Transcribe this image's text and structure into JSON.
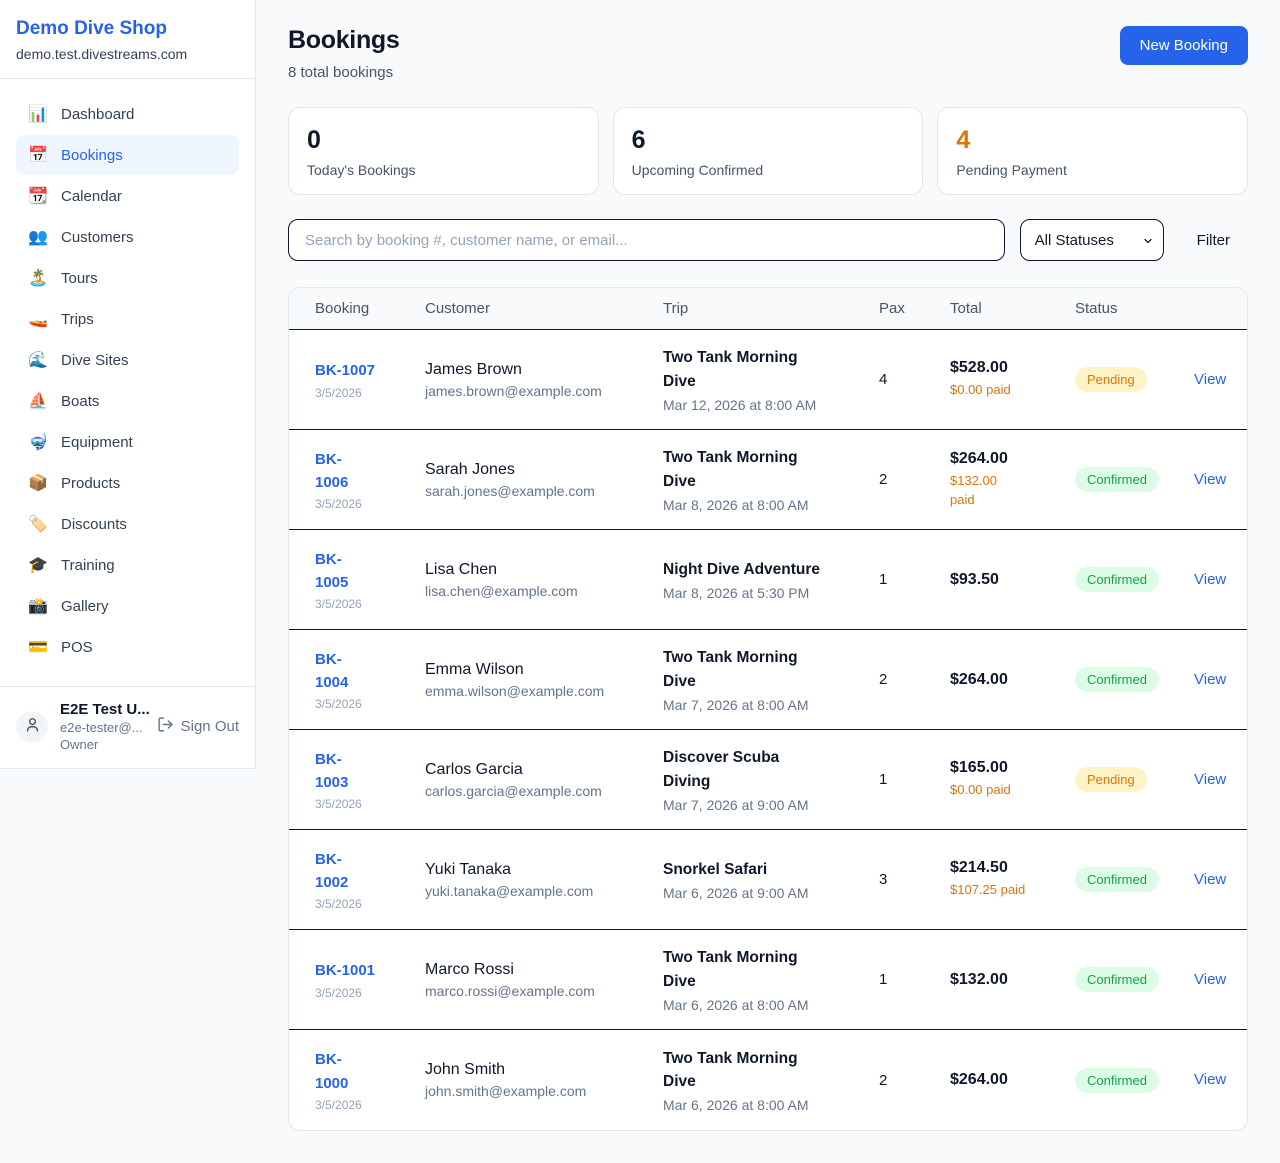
{
  "colors": {
    "accent_blue": "#2563eb",
    "stat_orange": "#d97706",
    "pending_bg": "#fef3c7",
    "pending_text": "#d97706",
    "confirmed_bg": "#dcfce7",
    "confirmed_text": "#16a34a"
  },
  "sidebar": {
    "title": "Demo Dive Shop",
    "domain": "demo.test.divestreams.com",
    "items": [
      {
        "label": "Dashboard",
        "icon": "bar-chart-icon",
        "glyph": "📊",
        "active": false
      },
      {
        "label": "Bookings",
        "icon": "calendar-icon",
        "glyph": "📅",
        "active": true
      },
      {
        "label": "Calendar",
        "icon": "tearoff-calendar-icon",
        "glyph": "📆",
        "active": false
      },
      {
        "label": "Customers",
        "icon": "people-icon",
        "glyph": "👥",
        "active": false
      },
      {
        "label": "Tours",
        "icon": "island-icon",
        "glyph": "🏝️",
        "active": false
      },
      {
        "label": "Trips",
        "icon": "speedboat-icon",
        "glyph": "🚤",
        "active": false
      },
      {
        "label": "Dive Sites",
        "icon": "wave-icon",
        "glyph": "🌊",
        "active": false
      },
      {
        "label": "Boats",
        "icon": "sailboat-icon",
        "glyph": "⛵",
        "active": false
      },
      {
        "label": "Equipment",
        "icon": "diving-mask-icon",
        "glyph": "🤿",
        "active": false
      },
      {
        "label": "Products",
        "icon": "package-icon",
        "glyph": "📦",
        "active": false
      },
      {
        "label": "Discounts",
        "icon": "label-tag-icon",
        "glyph": "🏷️",
        "active": false
      },
      {
        "label": "Training",
        "icon": "graduation-cap-icon",
        "glyph": "🎓",
        "active": false
      },
      {
        "label": "Gallery",
        "icon": "camera-flash-icon",
        "glyph": "📸",
        "active": false
      },
      {
        "label": "POS",
        "icon": "credit-card-icon",
        "glyph": "💳",
        "active": false
      }
    ],
    "user": {
      "name": "E2E Test U...",
      "email": "e2e-tester@...",
      "role": "Owner",
      "sign_out_label": "Sign Out"
    }
  },
  "header": {
    "title": "Bookings",
    "subtitle": "8 total bookings",
    "new_booking_label": "New Booking"
  },
  "stats": [
    {
      "value": "0",
      "label": "Today's Bookings",
      "value_color": "#0f172a"
    },
    {
      "value": "6",
      "label": "Upcoming Confirmed",
      "value_color": "#0f172a"
    },
    {
      "value": "4",
      "label": "Pending Payment",
      "value_color": "#d97706"
    }
  ],
  "controls": {
    "search_placeholder": "Search by booking #, customer name, or email...",
    "status_filter_value": "All Statuses",
    "filter_label": "Filter"
  },
  "table": {
    "columns": [
      "Booking",
      "Customer",
      "Trip",
      "Pax",
      "Total",
      "Status"
    ],
    "view_label": "View",
    "rows": [
      {
        "id": "BK-1007",
        "id_two_line": false,
        "date": "3/5/2026",
        "customer_name": "James Brown",
        "customer_email": "james.brown@example.com",
        "trip_name": "Two Tank Morning Dive",
        "trip_datetime": "Mar 12, 2026 at 8:00 AM",
        "pax": "4",
        "total": "$528.00",
        "paid": "$0.00 paid",
        "paid_two_line": false,
        "status": "Pending"
      },
      {
        "id": "BK-1006",
        "id_two_line": true,
        "date": "3/5/2026",
        "customer_name": "Sarah Jones",
        "customer_email": "sarah.jones@example.com",
        "trip_name": "Two Tank Morning Dive",
        "trip_datetime": "Mar 8, 2026 at 8:00 AM",
        "pax": "2",
        "total": "$264.00",
        "paid": "$132.00 paid",
        "paid_two_line": true,
        "status": "Confirmed"
      },
      {
        "id": "BK-1005",
        "id_two_line": true,
        "date": "3/5/2026",
        "customer_name": "Lisa Chen",
        "customer_email": "lisa.chen@example.com",
        "trip_name": "Night Dive Adventure",
        "trip_datetime": "Mar 8, 2026 at 5:30 PM",
        "pax": "1",
        "total": "$93.50",
        "paid": null,
        "paid_two_line": false,
        "status": "Confirmed"
      },
      {
        "id": "BK-1004",
        "id_two_line": true,
        "date": "3/5/2026",
        "customer_name": "Emma Wilson",
        "customer_email": "emma.wilson@example.com",
        "trip_name": "Two Tank Morning Dive",
        "trip_datetime": "Mar 7, 2026 at 8:00 AM",
        "pax": "2",
        "total": "$264.00",
        "paid": null,
        "paid_two_line": false,
        "status": "Confirmed"
      },
      {
        "id": "BK-1003",
        "id_two_line": true,
        "date": "3/5/2026",
        "customer_name": "Carlos Garcia",
        "customer_email": "carlos.garcia@example.com",
        "trip_name": "Discover Scuba Diving",
        "trip_datetime": "Mar 7, 2026 at 9:00 AM",
        "pax": "1",
        "total": "$165.00",
        "paid": "$0.00 paid",
        "paid_two_line": false,
        "status": "Pending"
      },
      {
        "id": "BK-1002",
        "id_two_line": true,
        "date": "3/5/2026",
        "customer_name": "Yuki Tanaka",
        "customer_email": "yuki.tanaka@example.com",
        "trip_name": "Snorkel Safari",
        "trip_datetime": "Mar 6, 2026 at 9:00 AM",
        "pax": "3",
        "total": "$214.50",
        "paid": "$107.25 paid",
        "paid_two_line": false,
        "status": "Confirmed"
      },
      {
        "id": "BK-1001",
        "id_two_line": false,
        "date": "3/5/2026",
        "customer_name": "Marco Rossi",
        "customer_email": "marco.rossi@example.com",
        "trip_name": "Two Tank Morning Dive",
        "trip_datetime": "Mar 6, 2026 at 8:00 AM",
        "pax": "1",
        "total": "$132.00",
        "paid": null,
        "paid_two_line": false,
        "status": "Confirmed"
      },
      {
        "id": "BK-1000",
        "id_two_line": true,
        "date": "3/5/2026",
        "customer_name": "John Smith",
        "customer_email": "john.smith@example.com",
        "trip_name": "Two Tank Morning Dive",
        "trip_datetime": "Mar 6, 2026 at 8:00 AM",
        "pax": "2",
        "total": "$264.00",
        "paid": null,
        "paid_two_line": false,
        "status": "Confirmed"
      }
    ]
  },
  "status_styles": {
    "Pending": {
      "bg": "#fef3c7",
      "text": "#d97706"
    },
    "Confirmed": {
      "bg": "#dcfce7",
      "text": "#16a34a"
    }
  }
}
